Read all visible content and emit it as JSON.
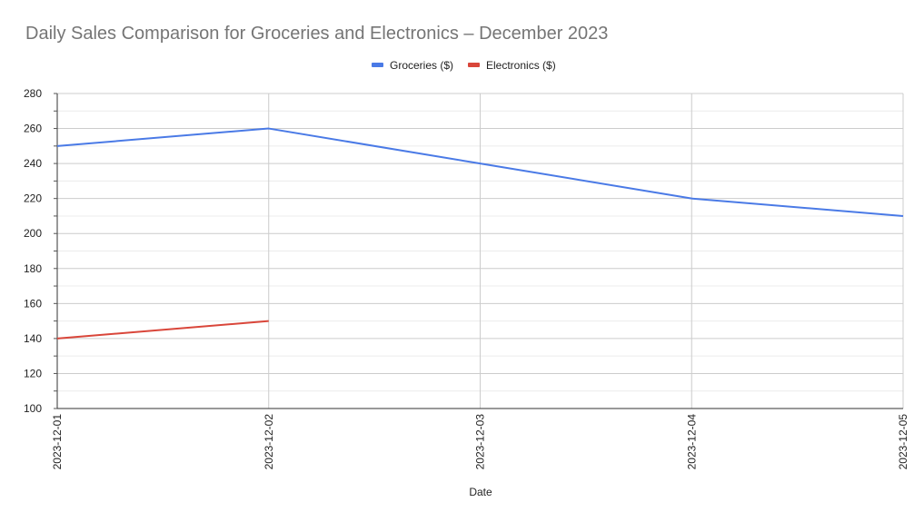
{
  "chart_data": {
    "type": "line",
    "title": "Daily Sales Comparison for Groceries and Electronics – December 2023",
    "xlabel": "Date",
    "ylabel": "",
    "categories": [
      "2023-12-01",
      "2023-12-02",
      "2023-12-03",
      "2023-12-04",
      "2023-12-05"
    ],
    "ylim": [
      100,
      280
    ],
    "yticks": [
      100,
      120,
      140,
      160,
      180,
      200,
      220,
      240,
      260,
      280
    ],
    "grid": true,
    "legend_position": "top",
    "series": [
      {
        "name": "Groceries ($)",
        "color": "#4a7ae6",
        "values": [
          250,
          260,
          240,
          220,
          210
        ]
      },
      {
        "name": "Electronics ($)",
        "color": "#d9463a",
        "values": [
          140,
          150,
          null,
          null,
          null
        ]
      }
    ]
  }
}
